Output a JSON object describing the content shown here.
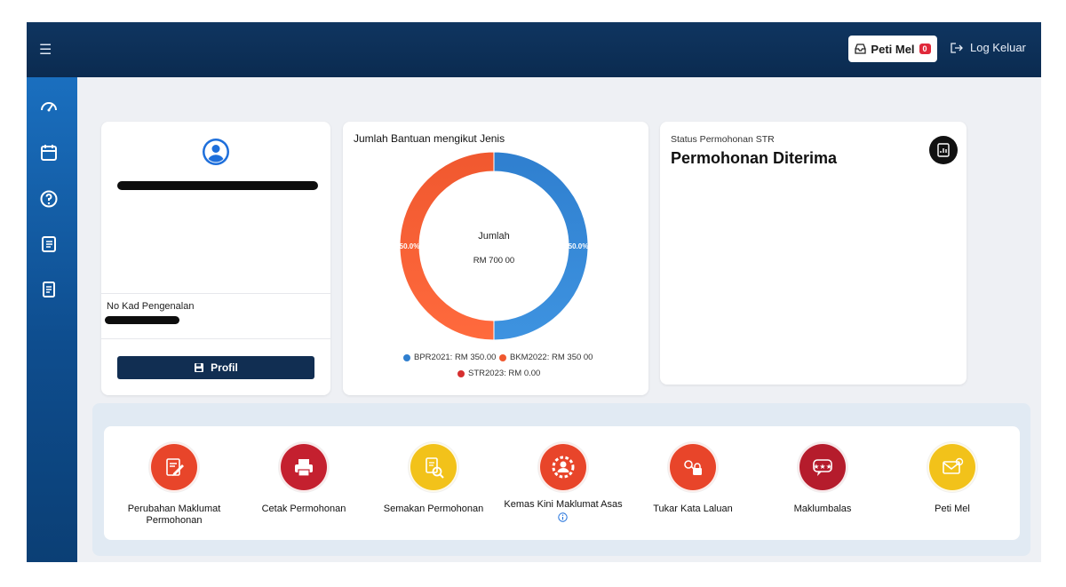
{
  "topbar": {
    "menu_icon": "hamburger-icon",
    "peti_mel_label": "Peti Mel",
    "peti_mel_count": "0",
    "logout_label": "Log Keluar"
  },
  "sidebar": {
    "items": [
      {
        "icon": "dashboard-gauge-icon"
      },
      {
        "icon": "calendar-icon"
      },
      {
        "icon": "help-icon"
      },
      {
        "icon": "checklist-icon"
      },
      {
        "icon": "document-icon"
      }
    ]
  },
  "profile": {
    "id_label": "No Kad Pengenalan",
    "profil_button": "Profil"
  },
  "chart_card": {
    "title": "Jumlah Bantuan mengikut Jenis",
    "center_label": "Jumlah",
    "center_value": "RM 700 00",
    "pct_left": "50.0%",
    "pct_right": "50.0%",
    "legend": [
      {
        "label": "BPR2021: RM 350.00",
        "color": "#2f7fcf"
      },
      {
        "label": "BKM2022: RM 350 00",
        "color": "#f0582f"
      },
      {
        "label": "STR2023: RM 0.00",
        "color": "#d62f2f"
      }
    ]
  },
  "chart_data": {
    "type": "pie",
    "title": "Jumlah Bantuan mengikut Jenis",
    "categories": [
      "BPR2021",
      "BKM2022",
      "STR2023"
    ],
    "values": [
      350,
      350,
      0
    ],
    "colors": [
      "#2f7fcf",
      "#f0582f",
      "#d62f2f"
    ]
  },
  "status": {
    "small_label": "Status Permohonan STR",
    "big_label": "Permohonan Diterima"
  },
  "shortcuts": [
    {
      "label": "Perubahan Maklumat Permohonan",
      "icon": "edit-form-icon",
      "color": "#e8452a"
    },
    {
      "label": "Cetak Permohonan",
      "icon": "printer-icon",
      "color": "#c4202f"
    },
    {
      "label": "Semakan Permohonan",
      "icon": "document-search-icon",
      "color": "#f2c21a"
    },
    {
      "label": "Kemas Kini Maklumat Asas",
      "icon": "user-gear-icon",
      "color": "#e8452a"
    },
    {
      "label": "Tukar Kata Laluan",
      "icon": "password-lock-icon",
      "color": "#e8452a"
    },
    {
      "label": "Maklumbalas",
      "icon": "feedback-stars-icon",
      "color": "#b51c2c"
    },
    {
      "label": "Peti Mel",
      "icon": "mail-icon",
      "color": "#f2c21a"
    }
  ]
}
